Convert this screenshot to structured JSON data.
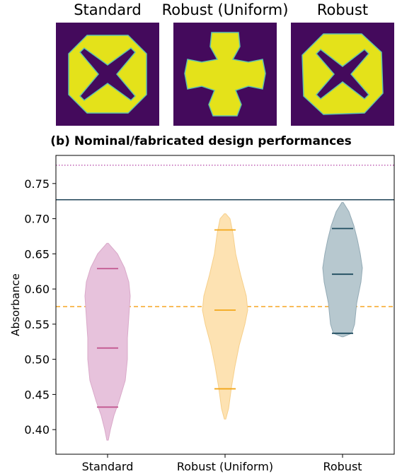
{
  "designs": {
    "titles": [
      "Standard",
      "Robust (Uniform)",
      "Robust"
    ],
    "colors": {
      "background": "#440a5c",
      "material": "#e4e21a",
      "edge": "#5fc2ac"
    }
  },
  "chart_data": {
    "type": "violin",
    "title": "(b) Nominal/fabricated design performances",
    "xlabel": "",
    "ylabel": "Absorbance",
    "categories": [
      "Standard",
      "Robust (Uniform)",
      "Robust"
    ],
    "ylim": [
      0.365,
      0.79
    ],
    "yticks": [
      0.4,
      0.45,
      0.5,
      0.55,
      0.6,
      0.65,
      0.7,
      0.75
    ],
    "grid": false,
    "violins": [
      {
        "min": 0.385,
        "max": 0.665,
        "quartiles": [
          0.432,
          0.516,
          0.629
        ],
        "fill": "#e7c2dc",
        "edge": "#d9a9c9",
        "line": "#c2578f"
      },
      {
        "min": 0.415,
        "max": 0.707,
        "quartiles": [
          0.458,
          0.57,
          0.684
        ],
        "fill": "#fde2b2",
        "edge": "#f6cf8a",
        "line": "#f2a618"
      },
      {
        "min": 0.532,
        "max": 0.723,
        "quartiles": [
          0.537,
          0.621,
          0.686
        ],
        "fill": "#b7c8cf",
        "edge": "#93aab5",
        "line": "#1f4c5f"
      }
    ],
    "reference_lines": [
      {
        "y": 0.776,
        "style": "dotted",
        "color": "#c061b4"
      },
      {
        "y": 0.727,
        "style": "solid",
        "color": "#1f4357"
      },
      {
        "y": 0.575,
        "style": "dashed",
        "color": "#f5a623"
      }
    ]
  }
}
